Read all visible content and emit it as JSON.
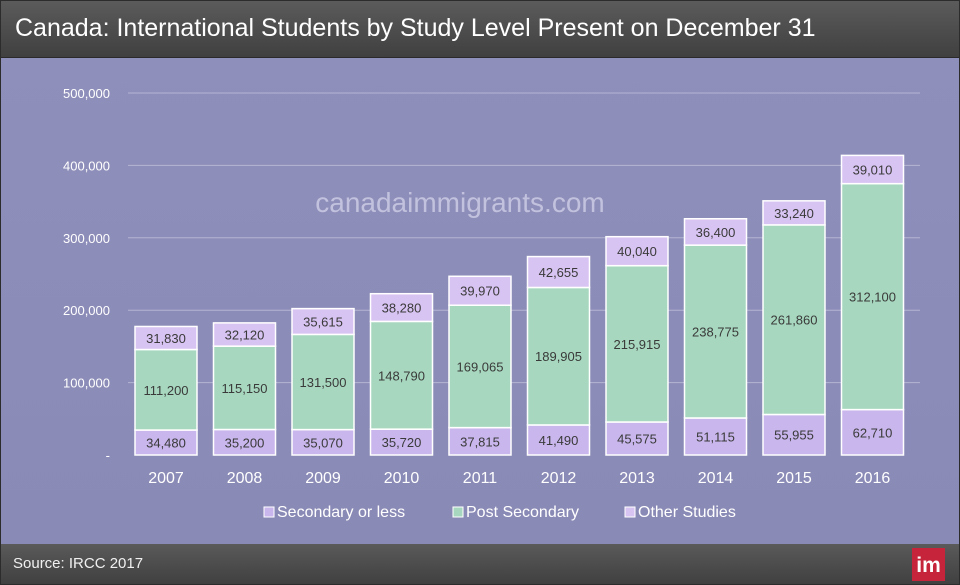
{
  "title": "Canada: International Students by Study Level Present on December 31",
  "watermark": "canadaimmigrants.com",
  "source": "Source: IRCC 2017",
  "logo_text": "im",
  "colors": {
    "secondary": "#c8b6ec",
    "post_secondary": "#a7d8bf",
    "other": "#d8c4f2",
    "background": "#8c8cba",
    "title_bar": "#4a4a4a",
    "logo": "#c6243a"
  },
  "chart_data": {
    "type": "bar",
    "stacked": true,
    "title": "Canada: International Students by Study Level Present on December 31",
    "xlabel": "",
    "ylabel": "",
    "ylim": [
      0,
      500000
    ],
    "yticks": [
      0,
      100000,
      200000,
      300000,
      400000,
      500000
    ],
    "ytick_labels": [
      "-",
      "100,000",
      "200,000",
      "300,000",
      "400,000",
      "500,000"
    ],
    "grid": true,
    "legend_position": "bottom",
    "categories": [
      "2007",
      "2008",
      "2009",
      "2010",
      "2011",
      "2012",
      "2013",
      "2014",
      "2015",
      "2016"
    ],
    "series": [
      {
        "name": "Secondary or less",
        "values": [
          34480,
          35200,
          35070,
          35720,
          37815,
          41490,
          45575,
          51115,
          55955,
          62710
        ],
        "labels": [
          "34,480",
          "35,200",
          "35,070",
          "35,720",
          "37,815",
          "41,490",
          "45,575",
          "51,115",
          "55,955",
          "62,710"
        ]
      },
      {
        "name": "Post Secondary",
        "values": [
          111200,
          115150,
          131500,
          148790,
          169065,
          189905,
          215915,
          238775,
          261860,
          312100
        ],
        "labels": [
          "111,200",
          "115,150",
          "131,500",
          "148,790",
          "169,065",
          "189,905",
          "215,915",
          "238,775",
          "261,860",
          "312,100"
        ]
      },
      {
        "name": "Other Studies",
        "values": [
          31830,
          32120,
          35615,
          38280,
          39970,
          42655,
          40040,
          36400,
          33240,
          39010
        ],
        "labels": [
          "31,830",
          "32,120",
          "35,615",
          "38,280",
          "39,970",
          "42,655",
          "40,040",
          "36,400",
          "33,240",
          "39,010"
        ]
      }
    ]
  }
}
